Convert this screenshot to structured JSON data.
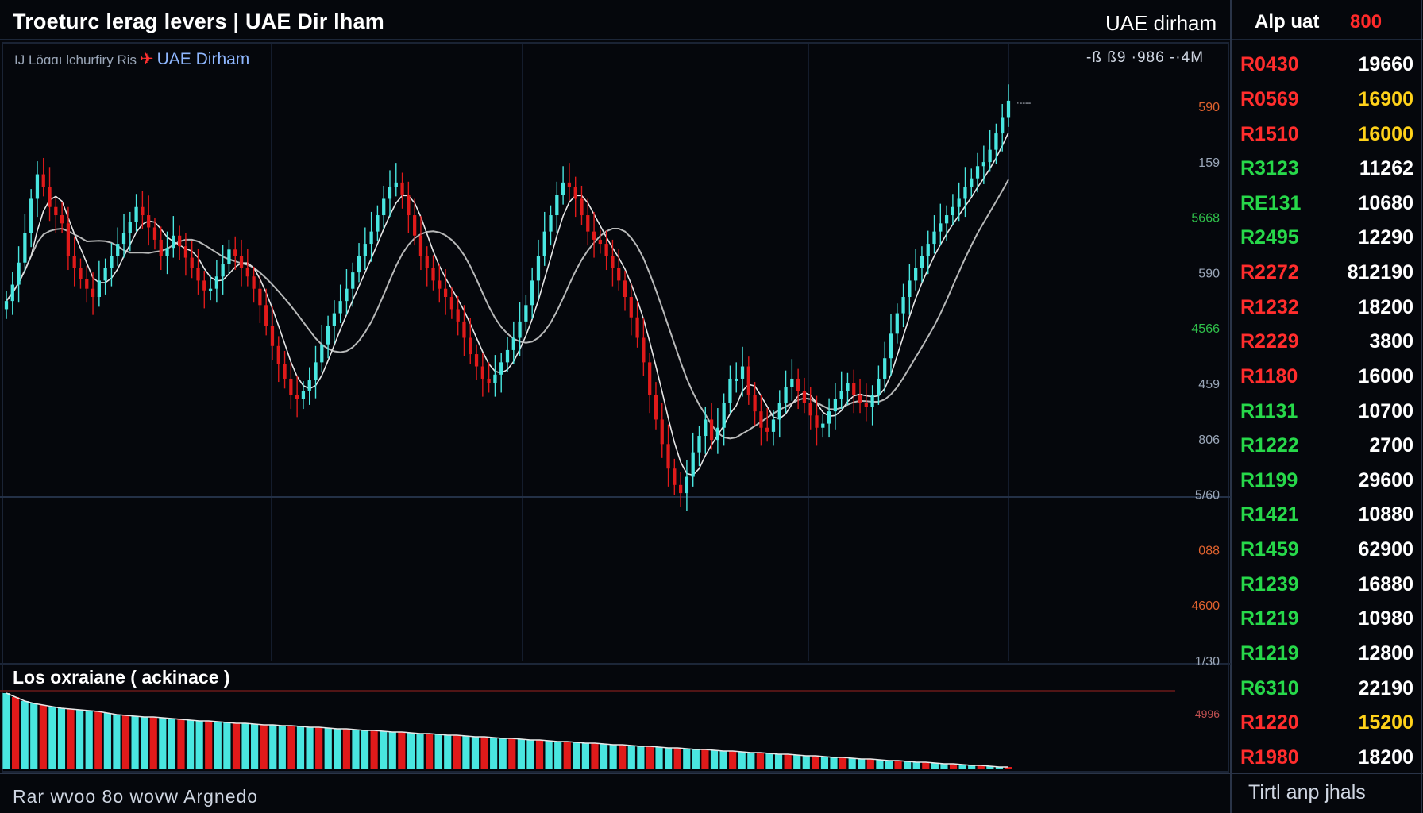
{
  "header": {
    "title": "Troeturc lerag levers | UAE Dir lham",
    "subtitle_lead": "IJ Löɑɑı lchurfiry Ris",
    "subtitle_name": "UAE Dirham",
    "currency": "UAE dirham",
    "readout": "-ß ß9 ·986 -·4M"
  },
  "order_panel": {
    "header_label": "Alp uat",
    "header_value": "800",
    "footer": "Tirtl anp jhals",
    "rows": [
      {
        "id": "R0430",
        "id_color": "red",
        "amount": "19660",
        "amount_color": "white"
      },
      {
        "id": "R0569",
        "id_color": "red",
        "amount": "16900",
        "amount_color": "yellow"
      },
      {
        "id": "R1510",
        "id_color": "red",
        "amount": "16000",
        "amount_color": "yellow"
      },
      {
        "id": "R3123",
        "id_color": "green",
        "amount": "11262",
        "amount_color": "white"
      },
      {
        "id": "RE131",
        "id_color": "green",
        "amount": "10680",
        "amount_color": "white"
      },
      {
        "id": "R2495",
        "id_color": "green",
        "amount": "12290",
        "amount_color": "white"
      },
      {
        "id": "R2272",
        "id_color": "red",
        "amount": "812190",
        "amount_color": "white"
      },
      {
        "id": "R1232",
        "id_color": "red",
        "amount": "18200",
        "amount_color": "white"
      },
      {
        "id": "R2229",
        "id_color": "red",
        "amount": "3800",
        "amount_color": "white"
      },
      {
        "id": "R1180",
        "id_color": "red",
        "amount": "16000",
        "amount_color": "white"
      },
      {
        "id": "R1131",
        "id_color": "green",
        "amount": "10700",
        "amount_color": "white"
      },
      {
        "id": "R1222",
        "id_color": "green",
        "amount": "2700",
        "amount_color": "white"
      },
      {
        "id": "R1199",
        "id_color": "green",
        "amount": "29600",
        "amount_color": "white"
      },
      {
        "id": "R1421",
        "id_color": "green",
        "amount": "10880",
        "amount_color": "white"
      },
      {
        "id": "R1459",
        "id_color": "green",
        "amount": "62900",
        "amount_color": "white"
      },
      {
        "id": "R1239",
        "id_color": "green",
        "amount": "16880",
        "amount_color": "white"
      },
      {
        "id": "R1219",
        "id_color": "green",
        "amount": "10980",
        "amount_color": "white"
      },
      {
        "id": "R1219",
        "id_color": "green",
        "amount": "12800",
        "amount_color": "white"
      },
      {
        "id": "R6310",
        "id_color": "green",
        "amount": "22190",
        "amount_color": "white"
      },
      {
        "id": "R1220",
        "id_color": "red",
        "amount": "15200",
        "amount_color": "yellow"
      },
      {
        "id": "R1980",
        "id_color": "red",
        "amount": "18200",
        "amount_color": "white"
      }
    ]
  },
  "volume": {
    "title": "Los oxraiane ( ackinace )",
    "tick_label": "4996"
  },
  "footer": {
    "left": "Rar wvoo 8o wovw Argnedo"
  },
  "colors": {
    "up": "#49e6e0",
    "down": "#e01a1a",
    "ma": "#f2f2f2",
    "background": "#05070c",
    "grid": "#1a2436"
  },
  "chart_data": {
    "type": "candlestick",
    "y_ticks": [
      {
        "label": "590",
        "color": "#e0622e"
      },
      {
        "label": "159",
        "color": "#9aa6b8"
      },
      {
        "label": "5668",
        "color": "#2fbf4a"
      },
      {
        "label": "590",
        "color": "#9aa6b8"
      },
      {
        "label": "4566",
        "color": "#2fbf4a"
      },
      {
        "label": "459",
        "color": "#9aa6b8"
      },
      {
        "label": "806",
        "color": "#9aa6b8"
      },
      {
        "label": "5/60",
        "color": "#9aa6b8"
      },
      {
        "label": "088",
        "color": "#e0622e"
      },
      {
        "label": "4600",
        "color": "#e0622e"
      },
      {
        "label": "1/30",
        "color": "#9aa6b8"
      }
    ],
    "last_price_label": "·----",
    "series_close": [
      415,
      435,
      462,
      498,
      540,
      570,
      555,
      530,
      520,
      510,
      470,
      455,
      442,
      430,
      420,
      440,
      455,
      470,
      485,
      498,
      512,
      530,
      520,
      505,
      490,
      470,
      480,
      495,
      482,
      468,
      455,
      440,
      428,
      430,
      445,
      460,
      478,
      470,
      455,
      445,
      430,
      410,
      385,
      360,
      338,
      320,
      300,
      295,
      305,
      318,
      340,
      362,
      385,
      400,
      415,
      430,
      450,
      470,
      485,
      500,
      520,
      540,
      555,
      560,
      545,
      520,
      495,
      470,
      455,
      440,
      430,
      420,
      405,
      390,
      370,
      350,
      335,
      320,
      315,
      325,
      340,
      355,
      370,
      390,
      410,
      440,
      470,
      500,
      520,
      545,
      560,
      555,
      540,
      520,
      500,
      490,
      485,
      470,
      455,
      440,
      420,
      395,
      370,
      340,
      300,
      270,
      240,
      210,
      190,
      180,
      200,
      230,
      250,
      270,
      245,
      260,
      290,
      320,
      320,
      335,
      300,
      280,
      260,
      255,
      270,
      290,
      310,
      320,
      305,
      290,
      275,
      260,
      265,
      280,
      295,
      305,
      315,
      300,
      290,
      285,
      300,
      320,
      345,
      375,
      400,
      420,
      440,
      455,
      470,
      485,
      500,
      510,
      520,
      530,
      540,
      555,
      565,
      580,
      585,
      600,
      620,
      640,
      660
    ],
    "volume_values": [
      95,
      90,
      85,
      82,
      80,
      78,
      76,
      75,
      74,
      73,
      72,
      70,
      68,
      67,
      66,
      65,
      65,
      64,
      63,
      62,
      61,
      60,
      60,
      59,
      58,
      57,
      57,
      56,
      55,
      55,
      54,
      54,
      53,
      52,
      52,
      51,
      50,
      50,
      49,
      48,
      48,
      47,
      46,
      46,
      45,
      44,
      44,
      43,
      42,
      42,
      41,
      40,
      40,
      39,
      38,
      38,
      37,
      36,
      36,
      35,
      34,
      34,
      33,
      32,
      32,
      31,
      30,
      30,
      29,
      28,
      28,
      27,
      26,
      26,
      25,
      24,
      24,
      23,
      22,
      22,
      21,
      20,
      20,
      19,
      18,
      18,
      17,
      16,
      16,
      15,
      14,
      14,
      13,
      12,
      12,
      11,
      10,
      10,
      9,
      8,
      8,
      7,
      6,
      6,
      5,
      4,
      4,
      3,
      2,
      2
    ]
  }
}
